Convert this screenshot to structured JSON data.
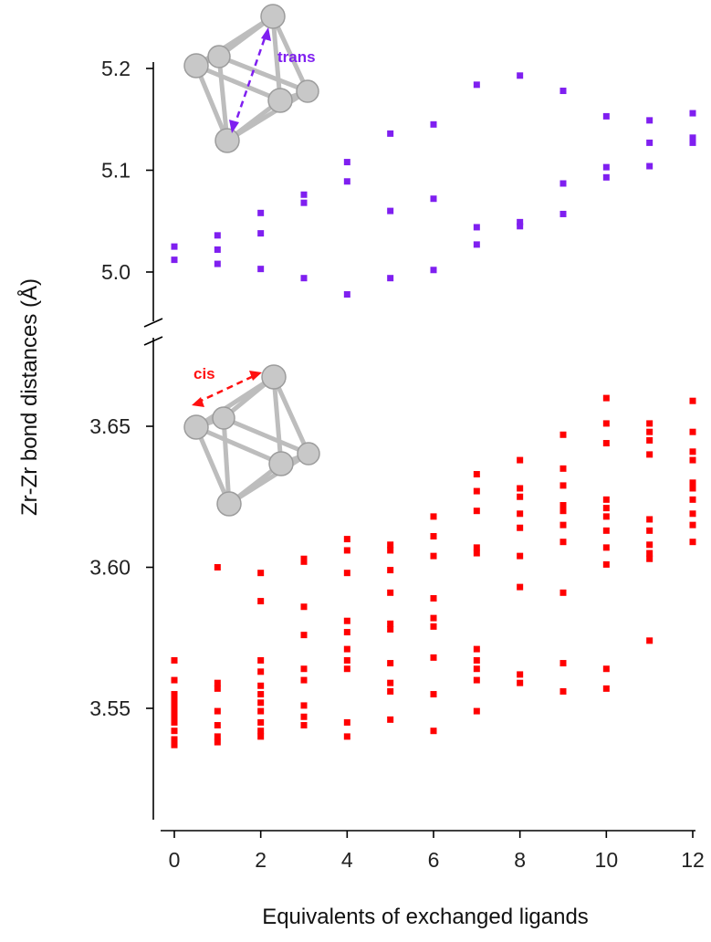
{
  "chart_data": {
    "type": "scatter",
    "title": "",
    "xlabel": "Equivalents of exchanged ligands",
    "ylabel": "Zr-Zr bond distances (Å)",
    "x_ticks": [
      0,
      2,
      4,
      6,
      8,
      10,
      12
    ],
    "x_tick_labels": [
      "0",
      "2",
      "4",
      "6",
      "8",
      "10",
      "12"
    ],
    "xlim": [
      -0.5,
      12.2
    ],
    "axis_break": true,
    "panels": [
      {
        "id": "upper",
        "ylim": [
          4.94,
          5.21
        ],
        "y_ticks": [
          5.0,
          5.1,
          5.2
        ],
        "y_tick_labels": [
          "5.0",
          "5.1",
          "5.2"
        ]
      },
      {
        "id": "lower",
        "ylim": [
          3.51,
          3.675
        ],
        "y_ticks": [
          3.55,
          3.6,
          3.65
        ],
        "y_tick_labels": [
          "3.55",
          "3.60",
          "3.65"
        ]
      }
    ],
    "series": [
      {
        "name": "trans",
        "panel": "upper",
        "color": "#7f1ff0",
        "marker": "square",
        "points": [
          [
            0,
            5.025
          ],
          [
            0,
            5.012
          ],
          [
            1,
            5.036
          ],
          [
            1,
            5.022
          ],
          [
            1,
            5.008
          ],
          [
            2,
            5.058
          ],
          [
            2,
            5.038
          ],
          [
            2,
            5.003
          ],
          [
            3,
            5.076
          ],
          [
            3,
            5.068
          ],
          [
            3,
            4.994
          ],
          [
            4,
            5.108
          ],
          [
            4,
            5.089
          ],
          [
            4,
            4.978
          ],
          [
            5,
            5.136
          ],
          [
            5,
            5.06
          ],
          [
            5,
            4.994
          ],
          [
            6,
            5.145
          ],
          [
            6,
            5.072
          ],
          [
            6,
            5.002
          ],
          [
            7,
            5.184
          ],
          [
            7,
            5.044
          ],
          [
            7,
            5.027
          ],
          [
            8,
            5.193
          ],
          [
            8,
            5.049
          ],
          [
            8,
            5.045
          ],
          [
            9,
            5.178
          ],
          [
            9,
            5.087
          ],
          [
            9,
            5.057
          ],
          [
            10,
            5.153
          ],
          [
            10,
            5.103
          ],
          [
            10,
            5.093
          ],
          [
            11,
            5.149
          ],
          [
            11,
            5.127
          ],
          [
            11,
            5.104
          ],
          [
            12,
            5.156
          ],
          [
            12,
            5.132
          ],
          [
            12,
            5.127
          ]
        ]
      },
      {
        "name": "cis",
        "panel": "lower",
        "color": "#ff0000",
        "marker": "square",
        "points": [
          [
            0,
            3.567
          ],
          [
            0,
            3.56
          ],
          [
            0,
            3.555
          ],
          [
            0,
            3.553
          ],
          [
            0,
            3.551
          ],
          [
            0,
            3.549
          ],
          [
            0,
            3.547
          ],
          [
            0,
            3.545
          ],
          [
            0,
            3.542
          ],
          [
            0,
            3.539
          ],
          [
            0,
            3.537
          ],
          [
            1,
            3.6
          ],
          [
            1,
            3.559
          ],
          [
            1,
            3.557
          ],
          [
            1,
            3.549
          ],
          [
            1,
            3.544
          ],
          [
            1,
            3.54
          ],
          [
            1,
            3.538
          ],
          [
            2,
            3.598
          ],
          [
            2,
            3.588
          ],
          [
            2,
            3.567
          ],
          [
            2,
            3.563
          ],
          [
            2,
            3.558
          ],
          [
            2,
            3.555
          ],
          [
            2,
            3.552
          ],
          [
            2,
            3.549
          ],
          [
            2,
            3.545
          ],
          [
            2,
            3.542
          ],
          [
            2,
            3.54
          ],
          [
            3,
            3.603
          ],
          [
            3,
            3.602
          ],
          [
            3,
            3.586
          ],
          [
            3,
            3.576
          ],
          [
            3,
            3.564
          ],
          [
            3,
            3.56
          ],
          [
            3,
            3.551
          ],
          [
            3,
            3.547
          ],
          [
            3,
            3.544
          ],
          [
            4,
            3.61
          ],
          [
            4,
            3.606
          ],
          [
            4,
            3.598
          ],
          [
            4,
            3.581
          ],
          [
            4,
            3.577
          ],
          [
            4,
            3.571
          ],
          [
            4,
            3.567
          ],
          [
            4,
            3.564
          ],
          [
            4,
            3.545
          ],
          [
            4,
            3.54
          ],
          [
            5,
            3.608
          ],
          [
            5,
            3.606
          ],
          [
            5,
            3.599
          ],
          [
            5,
            3.591
          ],
          [
            5,
            3.58
          ],
          [
            5,
            3.578
          ],
          [
            5,
            3.566
          ],
          [
            5,
            3.559
          ],
          [
            5,
            3.556
          ],
          [
            5,
            3.546
          ],
          [
            6,
            3.618
          ],
          [
            6,
            3.611
          ],
          [
            6,
            3.604
          ],
          [
            6,
            3.589
          ],
          [
            6,
            3.582
          ],
          [
            6,
            3.579
          ],
          [
            6,
            3.568
          ],
          [
            6,
            3.555
          ],
          [
            6,
            3.542
          ],
          [
            7,
            3.633
          ],
          [
            7,
            3.627
          ],
          [
            7,
            3.62
          ],
          [
            7,
            3.607
          ],
          [
            7,
            3.605
          ],
          [
            7,
            3.571
          ],
          [
            7,
            3.567
          ],
          [
            7,
            3.564
          ],
          [
            7,
            3.56
          ],
          [
            7,
            3.549
          ],
          [
            8,
            3.638
          ],
          [
            8,
            3.628
          ],
          [
            8,
            3.625
          ],
          [
            8,
            3.619
          ],
          [
            8,
            3.614
          ],
          [
            8,
            3.604
          ],
          [
            8,
            3.593
          ],
          [
            8,
            3.562
          ],
          [
            8,
            3.559
          ],
          [
            9,
            3.647
          ],
          [
            9,
            3.635
          ],
          [
            9,
            3.629
          ],
          [
            9,
            3.622
          ],
          [
            9,
            3.62
          ],
          [
            9,
            3.615
          ],
          [
            9,
            3.609
          ],
          [
            9,
            3.591
          ],
          [
            9,
            3.566
          ],
          [
            9,
            3.556
          ],
          [
            10,
            3.66
          ],
          [
            10,
            3.651
          ],
          [
            10,
            3.644
          ],
          [
            10,
            3.624
          ],
          [
            10,
            3.621
          ],
          [
            10,
            3.618
          ],
          [
            10,
            3.613
          ],
          [
            10,
            3.607
          ],
          [
            10,
            3.601
          ],
          [
            10,
            3.564
          ],
          [
            10,
            3.557
          ],
          [
            11,
            3.651
          ],
          [
            11,
            3.648
          ],
          [
            11,
            3.645
          ],
          [
            11,
            3.64
          ],
          [
            11,
            3.617
          ],
          [
            11,
            3.613
          ],
          [
            11,
            3.608
          ],
          [
            11,
            3.605
          ],
          [
            11,
            3.603
          ],
          [
            11,
            3.574
          ],
          [
            12,
            3.659
          ],
          [
            12,
            3.648
          ],
          [
            12,
            3.641
          ],
          [
            12,
            3.638
          ],
          [
            12,
            3.63
          ],
          [
            12,
            3.628
          ],
          [
            12,
            3.624
          ],
          [
            12,
            3.619
          ],
          [
            12,
            3.615
          ],
          [
            12,
            3.609
          ]
        ]
      }
    ],
    "annotations": [
      {
        "text": "trans",
        "color": "#7f1ff0"
      },
      {
        "text": "cis",
        "color": "#ff1010"
      }
    ]
  }
}
